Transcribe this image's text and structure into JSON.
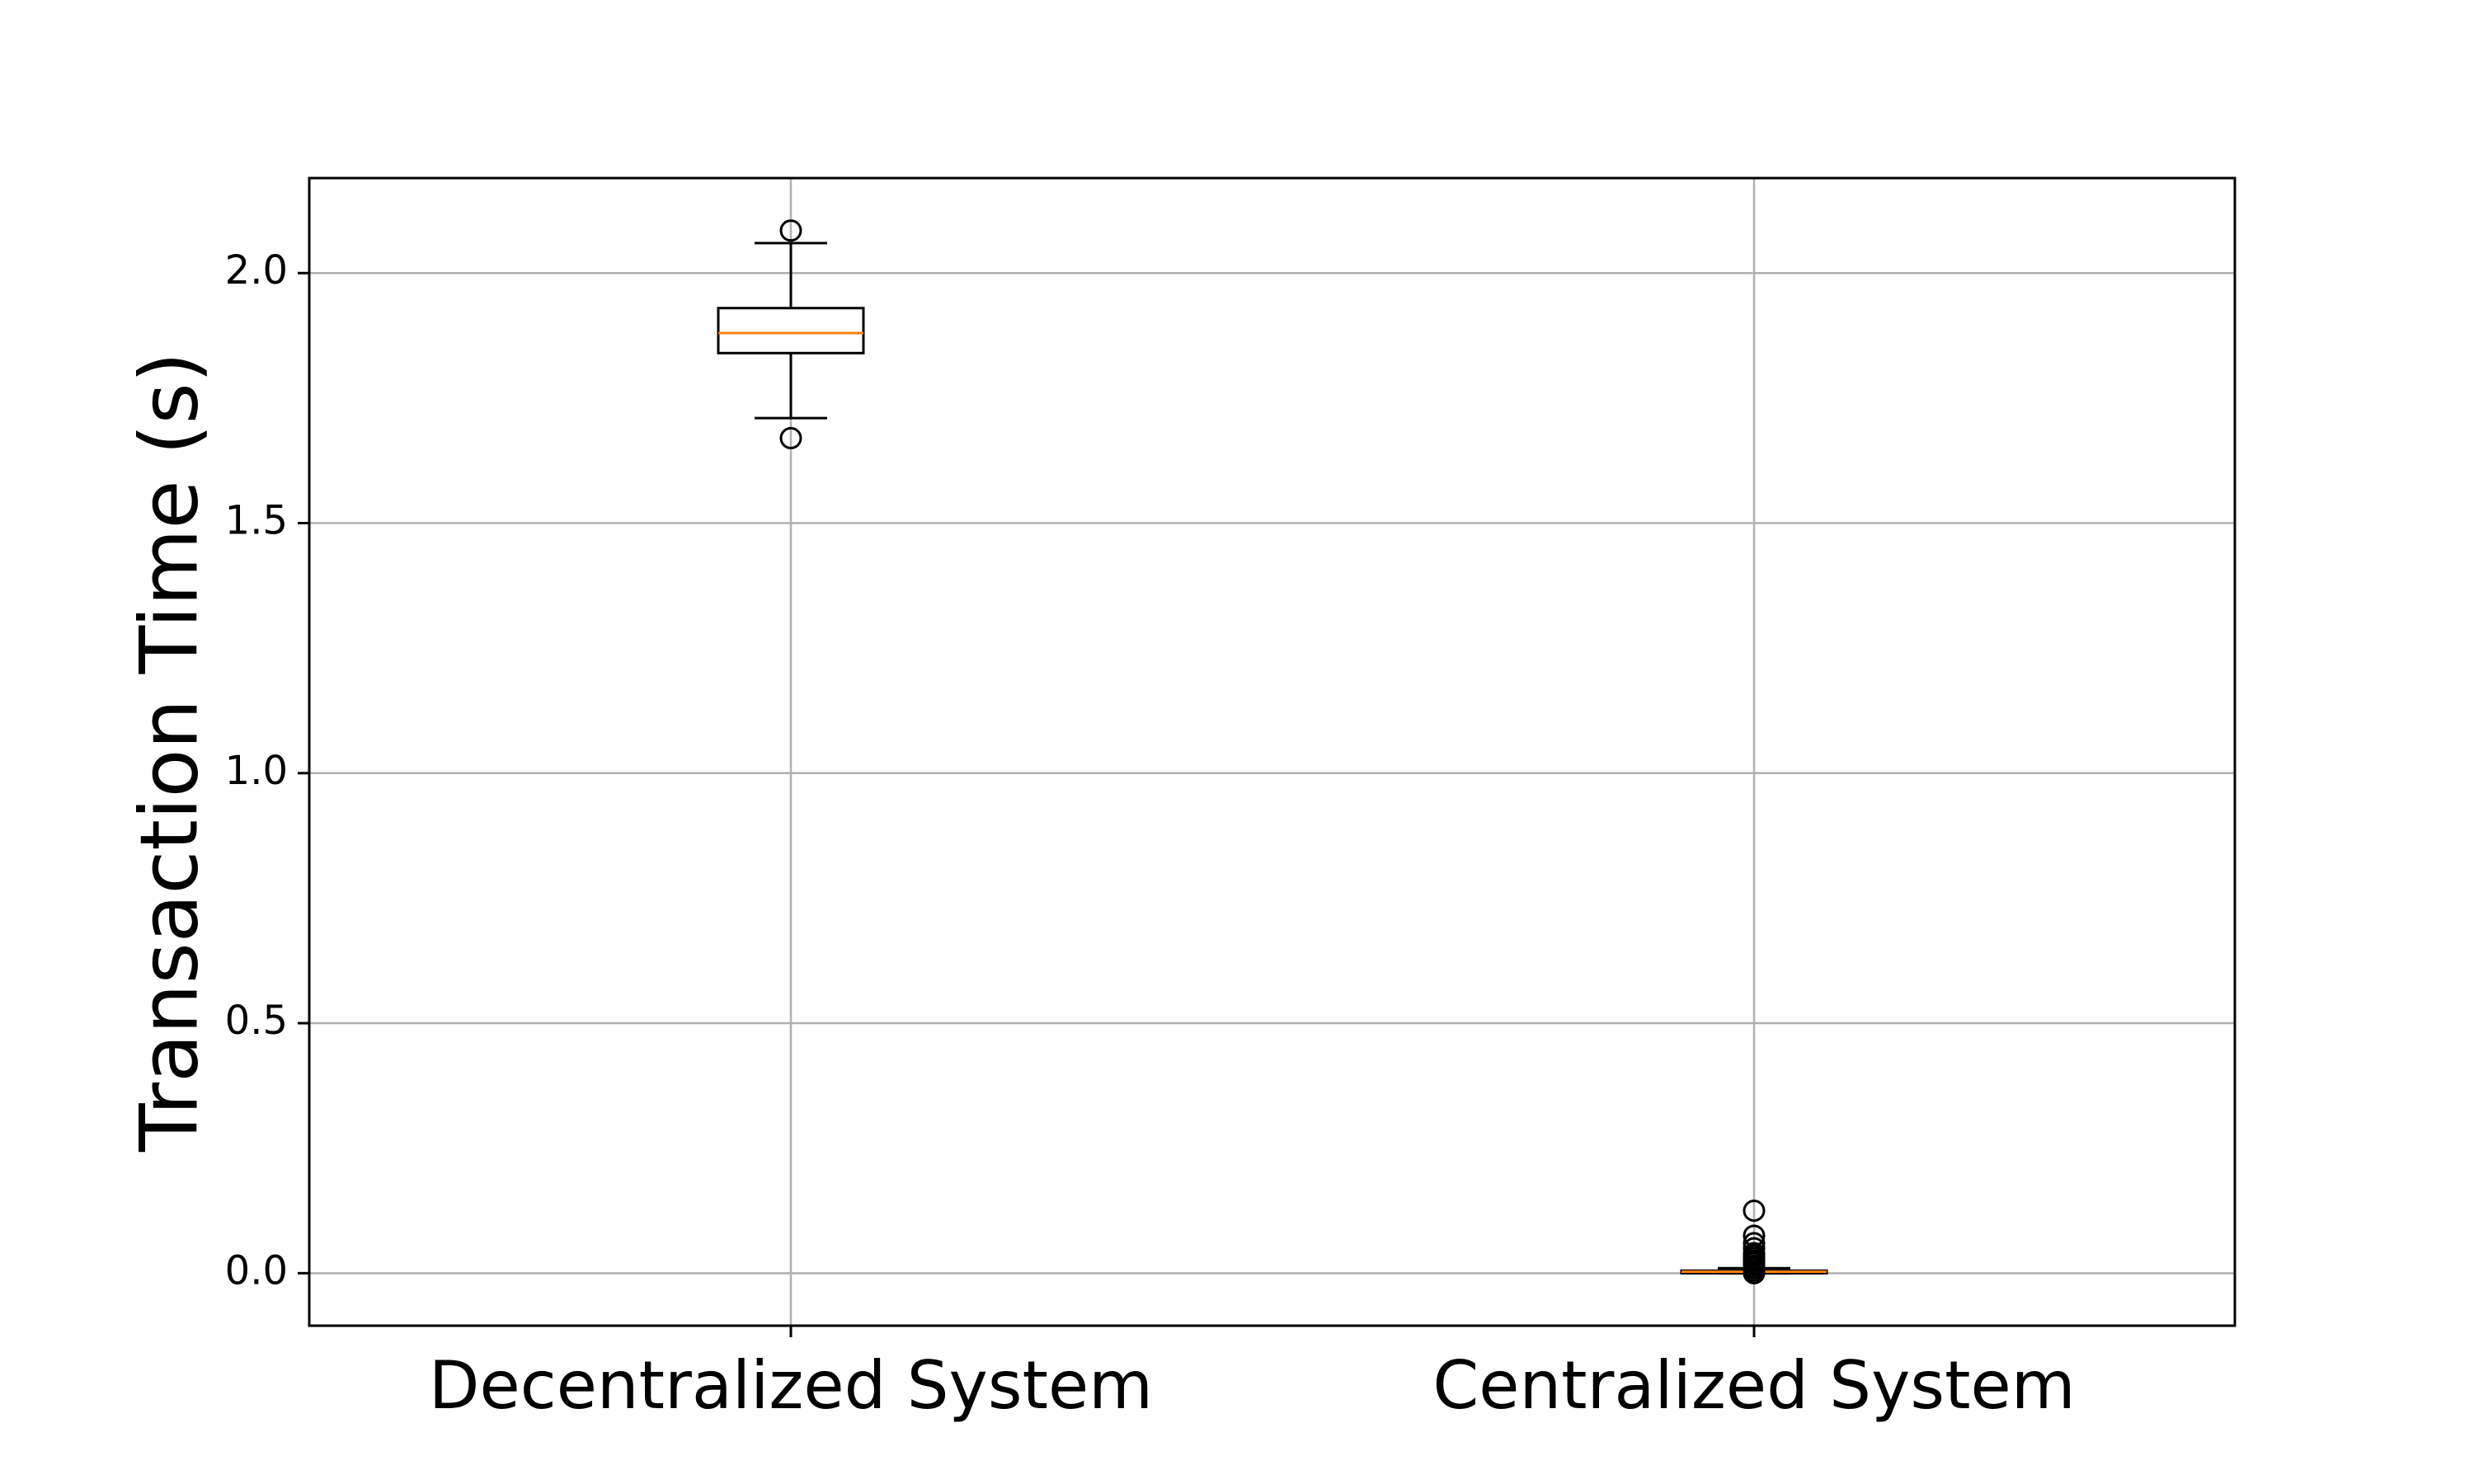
{
  "chart_data": {
    "type": "box",
    "categories": [
      "Decentralized System",
      "Centralized System"
    ],
    "xlabel": "",
    "ylabel": "Transaction Time (s)",
    "ylim": [
      -0.105,
      2.19
    ],
    "yticks": [
      0.0,
      0.5,
      1.0,
      1.5,
      2.0
    ],
    "ytick_labels": [
      "0.0",
      "0.5",
      "1.0",
      "1.5",
      "2.0"
    ],
    "grid": true,
    "colors": {
      "box": "#000000",
      "median": "#ff7f0e",
      "grid": "#b0b0b0"
    },
    "series": [
      {
        "category": "Decentralized System",
        "whisker_low": 1.71,
        "q1": 1.84,
        "median": 1.88,
        "q3": 1.93,
        "whisker_high": 2.06,
        "outliers": [
          1.67,
          2.085
        ]
      },
      {
        "category": "Centralized System",
        "whisker_low": 0.0,
        "q1": 0.0,
        "median": 0.003,
        "q3": 0.005,
        "whisker_high": 0.01,
        "outliers": [
          0.0,
          0.005,
          0.01,
          0.015,
          0.02,
          0.025,
          0.03,
          0.035,
          0.04,
          0.05,
          0.06,
          0.075,
          0.125
        ]
      }
    ]
  }
}
